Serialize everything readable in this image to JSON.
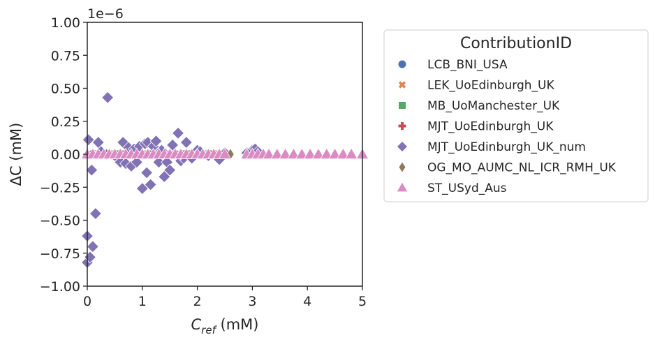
{
  "chart_data": {
    "type": "scatter",
    "title": "",
    "xlabel_main": "C",
    "xlabel_sub": "ref",
    "xlabel_unit": " (mM)",
    "ylabel": "ΔC (mM)",
    "y_offset_text": "1e−6",
    "xlim": [
      0,
      5
    ],
    "ylim": [
      -1.0,
      1.0
    ],
    "xticks": [
      0,
      1,
      2,
      3,
      4,
      5
    ],
    "xtick_labels": [
      "0",
      "1",
      "2",
      "3",
      "4",
      "5"
    ],
    "yticks": [
      -1.0,
      -0.75,
      -0.5,
      -0.25,
      0.0,
      0.25,
      0.5,
      0.75,
      1.0
    ],
    "ytick_labels": [
      "−1.00",
      "−0.75",
      "−0.50",
      "−0.25",
      "0.00",
      "0.25",
      "0.50",
      "0.75",
      "1.00"
    ],
    "grid": false,
    "legend_title": "ContributionID",
    "legend_position": "outside-right",
    "series": [
      {
        "name": "LCB_BNI_USA",
        "marker": "circle",
        "color": "#4c72b0",
        "x": [
          0.1,
          0.3,
          0.5,
          0.8,
          1.0,
          1.3,
          1.6,
          2.0,
          2.3
        ],
        "y": [
          0,
          0,
          0,
          0,
          0,
          0,
          0,
          0,
          0
        ]
      },
      {
        "name": "LEK_UoEdinburgh_UK",
        "marker": "x",
        "color": "#dd8452",
        "x": [
          0.15,
          0.4,
          0.7,
          1.1,
          1.5,
          1.9,
          2.4
        ],
        "y": [
          0,
          0,
          0,
          0,
          0,
          0,
          0
        ]
      },
      {
        "name": "MB_UoManchester_UK",
        "marker": "square",
        "color": "#55a868",
        "x": [
          0.2,
          0.6,
          1.2,
          1.8,
          2.2
        ],
        "y": [
          0,
          0,
          0,
          0,
          0
        ]
      },
      {
        "name": "MJT_UoEdinburgh_UK",
        "marker": "plus",
        "color": "#c44e52",
        "x": [
          0.25,
          0.9,
          1.4,
          2.1
        ],
        "y": [
          0,
          0,
          0,
          0
        ]
      },
      {
        "name": "MJT_UoEdinburgh_UK_num",
        "marker": "diamond",
        "color": "#8172b3",
        "x": [
          0.0,
          0.0,
          0.02,
          0.05,
          0.08,
          0.1,
          0.15,
          0.2,
          0.25,
          0.37,
          0.5,
          0.6,
          0.65,
          0.7,
          0.75,
          0.8,
          0.85,
          0.9,
          0.95,
          1.0,
          1.05,
          1.08,
          1.1,
          1.15,
          1.2,
          1.25,
          1.3,
          1.35,
          1.4,
          1.45,
          1.5,
          1.55,
          1.65,
          1.7,
          1.75,
          1.8,
          1.9,
          2.0,
          2.05,
          2.2,
          2.4,
          2.5,
          2.9,
          3.0,
          3.05,
          3.1
        ],
        "y": [
          -0.62,
          -0.82,
          0.11,
          -0.78,
          -0.12,
          -0.7,
          -0.45,
          0.09,
          0.02,
          0.43,
          -0.01,
          -0.06,
          0.09,
          -0.07,
          0.05,
          -0.09,
          0.04,
          -0.06,
          0.06,
          -0.26,
          0.08,
          -0.14,
          0.09,
          -0.23,
          0.06,
          0.1,
          -0.06,
          0.03,
          -0.17,
          -0.06,
          -0.12,
          0.07,
          0.16,
          -0.05,
          -0.03,
          0.09,
          -0.03,
          0.03,
          0.02,
          -0.01,
          -0.04,
          0.01,
          0.01,
          0.03,
          0.04,
          0.02
        ]
      },
      {
        "name": "OG_MO_AUMC_NL_ICR_RMH_UK",
        "marker": "diamond-thin",
        "color": "#937860",
        "x": [
          0.35,
          1.0,
          1.7,
          2.6
        ],
        "y": [
          0,
          0,
          0,
          0
        ]
      },
      {
        "name": "ST_USyd_Aus",
        "marker": "triangle",
        "color": "#da8bc3",
        "x": [
          0.0,
          0.1,
          0.2,
          0.3,
          0.4,
          0.5,
          0.6,
          0.7,
          0.8,
          0.9,
          1.0,
          1.1,
          1.2,
          1.3,
          1.4,
          1.5,
          1.6,
          1.7,
          1.8,
          1.9,
          2.0,
          2.1,
          2.2,
          2.3,
          2.4,
          2.5,
          2.9,
          3.0,
          3.1,
          3.2,
          3.3,
          3.45,
          3.6,
          3.75,
          3.9,
          4.05,
          4.2,
          4.35,
          4.5,
          4.65,
          4.8,
          5.0
        ],
        "y": [
          0,
          0,
          0,
          0,
          0,
          0,
          0,
          0,
          0,
          0,
          0,
          0,
          0,
          0,
          0,
          0,
          0,
          0,
          0,
          0,
          0,
          0,
          0,
          0,
          0,
          0,
          0,
          0,
          0,
          0,
          0,
          0,
          0,
          0,
          0,
          0,
          0,
          0,
          0,
          0,
          0,
          0
        ]
      }
    ]
  }
}
